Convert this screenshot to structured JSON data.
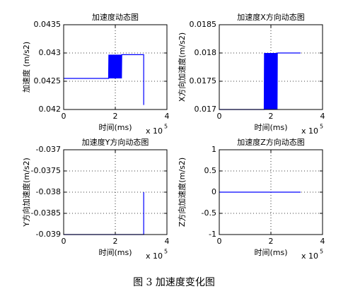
{
  "chart_data": [
    {
      "type": "line",
      "title": "加速度动态图",
      "xlabel": "时间(ms)",
      "ylabel": "加速度 (m/s2)",
      "x_scale_label": "x 10",
      "x_scale_exponent": "5",
      "color": "#0000ff",
      "grid": true,
      "xlim": [
        0,
        4
      ],
      "xticks": [
        0,
        2,
        4
      ],
      "ylim": [
        0.042,
        0.0435
      ],
      "yticks": [
        0.042,
        0.0425,
        0.043,
        0.0435
      ],
      "x": [
        0,
        1.74,
        1.75,
        1.76,
        1.77,
        1.78,
        1.79,
        1.8,
        1.81,
        1.82,
        1.83,
        1.84,
        1.85,
        1.86,
        1.87,
        1.88,
        1.89,
        1.9,
        1.91,
        1.92,
        1.93,
        1.94,
        1.95,
        1.96,
        1.97,
        1.98,
        1.99,
        2,
        2.01,
        2.02,
        2.03,
        2.04,
        2.05,
        2.06,
        2.07,
        2.08,
        2.09,
        2.1,
        2.11,
        2.12,
        2.13,
        2.14,
        2.15,
        2.16,
        2.17,
        2.18,
        2.19,
        2.2,
        2.21,
        2.22,
        2.23,
        2.24,
        2.25,
        3.1,
        3.1
      ],
      "values": [
        0.04255,
        0.04255,
        0.04297,
        0.04255,
        0.04297,
        0.04255,
        0.04297,
        0.04255,
        0.04297,
        0.04255,
        0.04297,
        0.04255,
        0.04297,
        0.04255,
        0.04297,
        0.04255,
        0.04297,
        0.04255,
        0.04297,
        0.04255,
        0.04297,
        0.04255,
        0.04297,
        0.04255,
        0.04297,
        0.04255,
        0.04297,
        0.04255,
        0.04297,
        0.04255,
        0.04297,
        0.04255,
        0.04297,
        0.04255,
        0.04297,
        0.04255,
        0.04297,
        0.04255,
        0.04297,
        0.04255,
        0.04297,
        0.04255,
        0.04297,
        0.04255,
        0.04297,
        0.04255,
        0.04297,
        0.04255,
        0.04297,
        0.04255,
        0.04297,
        0.04255,
        0.04297,
        0.04297,
        0.04208
      ]
    },
    {
      "type": "line",
      "title": "加速度X方向动态图",
      "xlabel": "时间(ms)",
      "ylabel": "X方向加速度(m/s2)",
      "x_scale_label": "x 10",
      "x_scale_exponent": "5",
      "color": "#0000ff",
      "grid": true,
      "xlim": [
        0,
        4
      ],
      "xticks": [
        0,
        2,
        4
      ],
      "ylim": [
        0.017,
        0.0185
      ],
      "yticks": [
        0.017,
        0.0175,
        0.018,
        0.0185
      ],
      "x": [
        0,
        1.74,
        1.75,
        1.76,
        1.77,
        1.78,
        1.79,
        1.8,
        1.81,
        1.82,
        1.83,
        1.84,
        1.85,
        1.86,
        1.87,
        1.88,
        1.89,
        1.9,
        1.91,
        1.92,
        1.93,
        1.94,
        1.95,
        1.96,
        1.97,
        1.98,
        1.99,
        2,
        2.01,
        2.02,
        2.03,
        2.04,
        2.05,
        2.06,
        2.07,
        2.08,
        2.09,
        2.1,
        2.11,
        2.12,
        2.13,
        2.14,
        2.15,
        2.16,
        2.17,
        2.18,
        2.19,
        2.2,
        2.21,
        2.22,
        2.23,
        2.24,
        2.25,
        3.15
      ],
      "values": [
        0.017,
        0.017,
        0.018,
        0.017,
        0.018,
        0.017,
        0.018,
        0.017,
        0.018,
        0.017,
        0.018,
        0.017,
        0.018,
        0.017,
        0.018,
        0.017,
        0.018,
        0.017,
        0.018,
        0.017,
        0.018,
        0.017,
        0.018,
        0.017,
        0.018,
        0.017,
        0.018,
        0.017,
        0.018,
        0.017,
        0.018,
        0.017,
        0.018,
        0.017,
        0.018,
        0.017,
        0.018,
        0.017,
        0.018,
        0.017,
        0.018,
        0.017,
        0.018,
        0.017,
        0.018,
        0.017,
        0.018,
        0.017,
        0.018,
        0.017,
        0.018,
        0.017,
        0.018,
        0.018
      ]
    },
    {
      "type": "line",
      "title": "加速度Y方向动态图",
      "xlabel": "时间(ms)",
      "ylabel": "Y方向加速度(m/s2)",
      "x_scale_label": "x 10",
      "x_scale_exponent": "5",
      "color": "#0000ff",
      "grid": true,
      "xlim": [
        0,
        4
      ],
      "xticks": [
        0,
        2,
        4
      ],
      "ylim": [
        -0.039,
        -0.037
      ],
      "yticks": [
        -0.039,
        -0.0385,
        -0.038,
        -0.0375,
        -0.037
      ],
      "x": [
        0,
        3.1,
        3.1
      ],
      "values": [
        -0.039,
        -0.039,
        -0.038
      ]
    },
    {
      "type": "line",
      "title": "加速度Z方向动态图",
      "xlabel": "时间(ms)",
      "ylabel": "Z方向加速度(m/s2)",
      "x_scale_label": "x 10",
      "x_scale_exponent": "5",
      "color": "#0000ff",
      "grid": true,
      "xlim": [
        0,
        4
      ],
      "xticks": [
        0,
        2,
        4
      ],
      "ylim": [
        -1,
        1
      ],
      "yticks": [
        -1,
        -0.5,
        0,
        0.5,
        1
      ],
      "x": [
        0,
        3.15
      ],
      "values": [
        0,
        0
      ]
    }
  ],
  "caption": "图 3 加速度变化图"
}
